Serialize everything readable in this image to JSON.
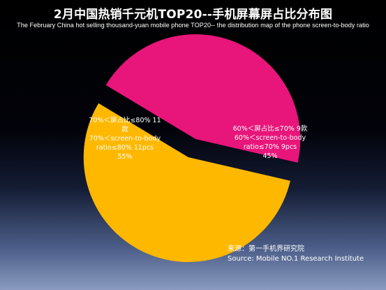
{
  "chart_data": {
    "type": "pie",
    "title": "2月中国热销千元机TOP20--手机屏幕屏占比分布图",
    "subtitle": "The February China hot selling thousand-yuan mobile phone TOP20-- the distribution map of the phone screen-to-body ratio",
    "slices": [
      {
        "label_cn": "70%＜屏占比≤80% 11款",
        "label_en": "70%＜screen-to-body ratio≤80% 11pcs",
        "value": 55,
        "count": 11,
        "percent_label": "55%",
        "color": "#FFB800"
      },
      {
        "label_cn": "60%＜屏占比≤70% 9款",
        "label_en": "60%＜screen-to-body ratio≤70% 9pcs",
        "value": 45,
        "count": 9,
        "percent_label": "45%",
        "color": "#E8157A"
      }
    ],
    "legend": "none"
  },
  "source": {
    "line_cn": "来源：第一手机界研究院",
    "line_en": "Source: Mobile NO.1 Research Institute"
  }
}
